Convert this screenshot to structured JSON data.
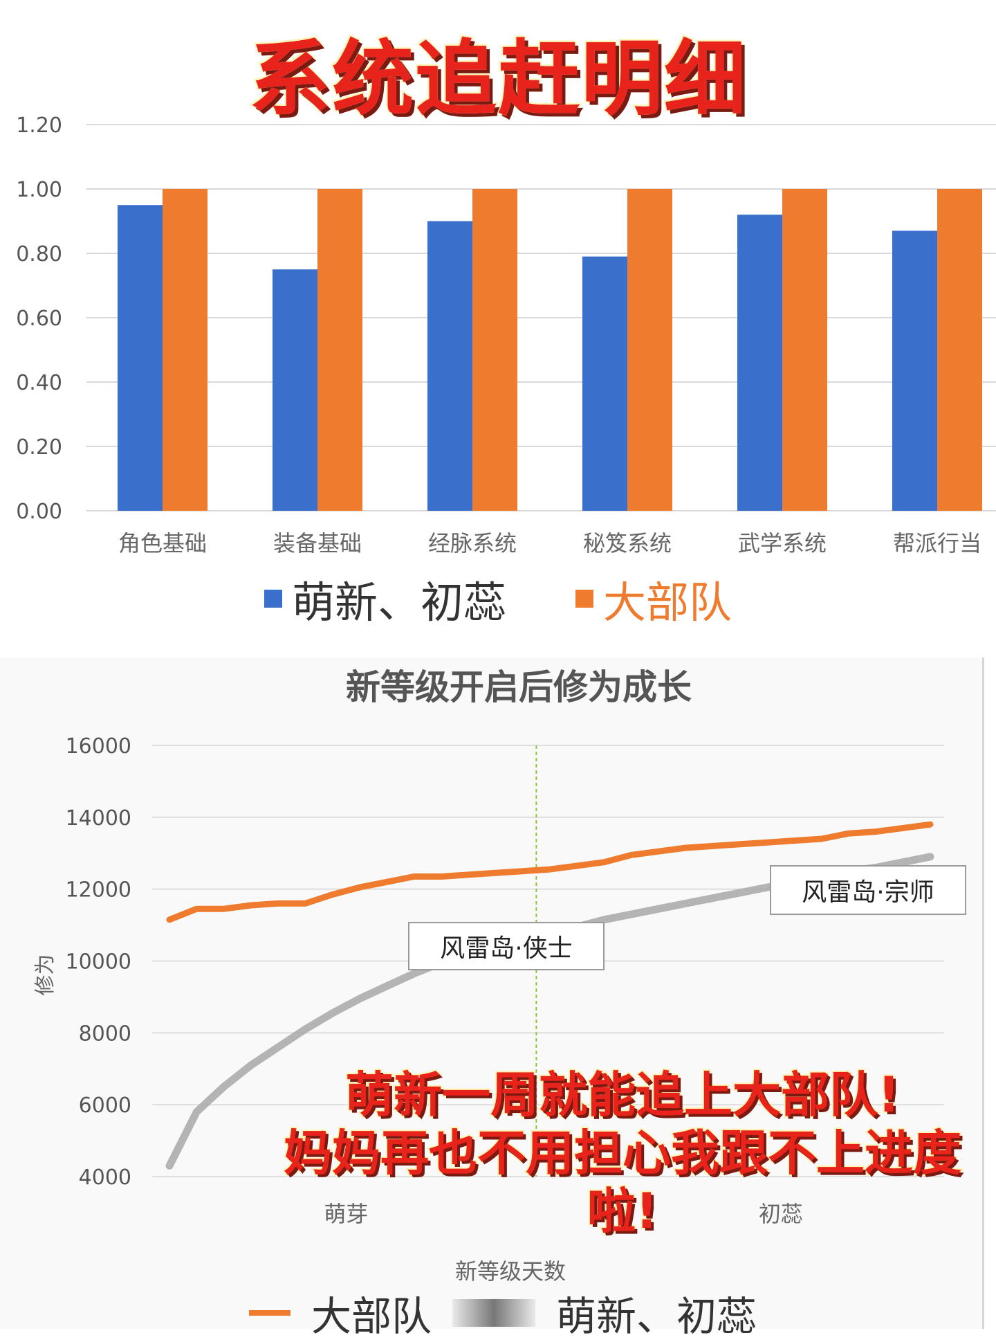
{
  "banner": {
    "title": "系统追赶明细"
  },
  "overlay": {
    "line1": "萌新一周就能追上大部队!",
    "line2": "妈妈再也不用担心我跟不上进度啦!"
  },
  "colors": {
    "blue": "#3a6fcc",
    "orange": "#ef7b2e",
    "gray": "#a8a8a8",
    "green_marker": "#8cc63f"
  },
  "chart_data": [
    {
      "type": "bar",
      "title": "",
      "categories": [
        "角色基础",
        "装备基础",
        "经脉系统",
        "秘笈系统",
        "武学系统",
        "帮派行当"
      ],
      "series": [
        {
          "name": "萌新、初蕊",
          "values": [
            0.95,
            0.75,
            0.9,
            0.79,
            0.92,
            0.87
          ]
        },
        {
          "name": "大部队",
          "values": [
            1.0,
            1.0,
            1.0,
            1.0,
            1.0,
            1.0
          ]
        }
      ],
      "yticks": [
        "0.00",
        "0.20",
        "0.40",
        "0.60",
        "0.80",
        "1.00",
        "1.20"
      ],
      "ylim": [
        0,
        1.2
      ],
      "grid": true,
      "legend": "bottom"
    },
    {
      "type": "line",
      "title": "新等级开启后修为成长",
      "xlabel": "新等级天数",
      "ylabel": "修为",
      "xtick_labels": [
        "萌芽",
        "初蕊"
      ],
      "yticks": [
        "4000",
        "6000",
        "8000",
        "10000",
        "12000",
        "14000",
        "16000"
      ],
      "ylim": [
        4000,
        16000
      ],
      "x_range": [
        0,
        28
      ],
      "grid": true,
      "legend": "bottom",
      "divider_x": 13.5,
      "series": [
        {
          "name": "大部队",
          "x": [
            0,
            1,
            2,
            3,
            4,
            5,
            6,
            7,
            8,
            9,
            10,
            11,
            12,
            13,
            14,
            15,
            16,
            17,
            18,
            19,
            20,
            21,
            22,
            23,
            24,
            25,
            26,
            27,
            28
          ],
          "values": [
            11150,
            11450,
            11450,
            11550,
            11600,
            11600,
            11850,
            12050,
            12200,
            12350,
            12350,
            12400,
            12450,
            12500,
            12550,
            12650,
            12750,
            12950,
            13050,
            13150,
            13200,
            13250,
            13300,
            13350,
            13400,
            13550,
            13600,
            13700,
            13800
          ]
        },
        {
          "name": "萌新、初蕊",
          "x": [
            0,
            1,
            2,
            3,
            4,
            5,
            6,
            7,
            8,
            9,
            10,
            11,
            12,
            13,
            14,
            15,
            16,
            17,
            18,
            19,
            20,
            21,
            22,
            23,
            24,
            25,
            26,
            27,
            28
          ],
          "values": [
            4300,
            5800,
            6500,
            7100,
            7600,
            8100,
            8550,
            8950,
            9300,
            9650,
            9950,
            10200,
            10400,
            10600,
            10800,
            10950,
            11150,
            11300,
            11450,
            11600,
            11750,
            11900,
            12050,
            12200,
            12350,
            12500,
            12600,
            12750,
            12900
          ]
        }
      ],
      "annotations": [
        {
          "text": "风雷岛·侠士"
        },
        {
          "text": "风雷岛·宗师"
        }
      ],
      "legend_visible": [
        "大部队",
        "萌新、初蕊"
      ]
    }
  ]
}
